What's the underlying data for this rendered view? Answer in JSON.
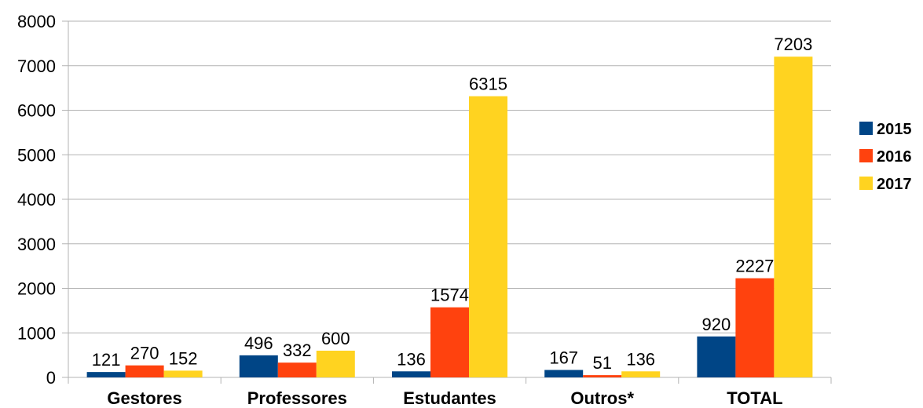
{
  "chart_data": {
    "type": "bar",
    "categories": [
      "Gestores",
      "Professores",
      "Estudantes",
      "Outros*",
      "TOTAL"
    ],
    "series": [
      {
        "name": "2015",
        "color": "#004586",
        "values": [
          121,
          496,
          136,
          167,
          920
        ]
      },
      {
        "name": "2016",
        "color": "#ff420e",
        "values": [
          270,
          332,
          1574,
          51,
          2227
        ]
      },
      {
        "name": "2017",
        "color": "#ffd320",
        "values": [
          152,
          600,
          6315,
          136,
          7203
        ]
      }
    ],
    "ylim": [
      0,
      8000
    ],
    "yticks": [
      0,
      1000,
      2000,
      3000,
      4000,
      5000,
      6000,
      7000,
      8000
    ],
    "grid": true,
    "legend_position": "right",
    "data_labels": true
  }
}
